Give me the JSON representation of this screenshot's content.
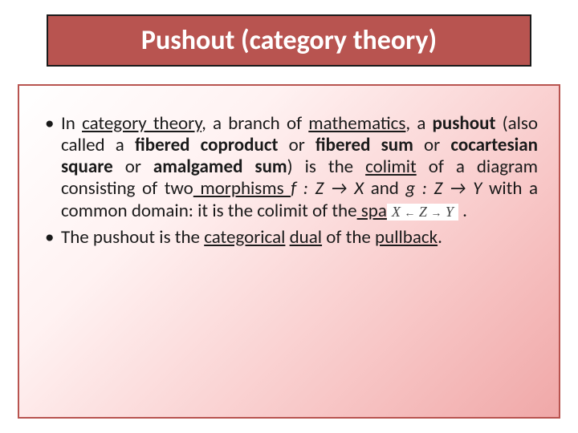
{
  "title": "Pushout (category theory)",
  "bullets": [
    {
      "pre": "In ",
      "link1": "category theory",
      "mid1": ", a branch of ",
      "link2": "mathematics",
      "mid2": ", a ",
      "bold1": "pushout",
      "mid3": " (also called a ",
      "bold2": "fibered coproduct",
      "mid4": " or ",
      "bold3": "fibered sum",
      "mid5": " or ",
      "bold4": "cocartesian square",
      "mid6": " or ",
      "bold5": "amalgamed sum",
      "mid7": ") is the ",
      "link3": "colimit",
      "mid8": " of a diagram consisting of two",
      "link4": " morphisms ",
      "fdef": "f : Z → X ",
      "mid9": "and             ",
      "gdef": "g : Z → Y ",
      "mid10": "with a common domain: it is the colimit of the",
      "link5": " spa",
      "mathX": "X",
      "mathZ": "Z",
      "mathY": "Y",
      "tail": "             ."
    },
    {
      "pre": "The pushout is the ",
      "link1": "categorical",
      "mid1": " ",
      "link2": "dual",
      "mid2": " of the ",
      "link3": "pullback",
      "tail": "."
    }
  ],
  "styling": {
    "title_bg": "#b85450",
    "title_border": "#1a1a1a",
    "title_color": "#ffffff",
    "title_fontsize": 34,
    "body_fontsize": 23,
    "content_border": "#b85450",
    "gradient_colors": [
      "#ffffff",
      "#fff2f2",
      "#f8c8c8",
      "#f0a8a8"
    ],
    "slide_width": 720,
    "slide_height": 540
  }
}
